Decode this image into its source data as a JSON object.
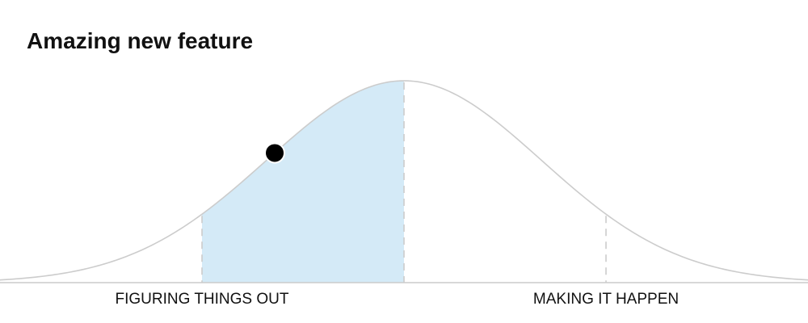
{
  "title": "Amazing new feature",
  "phases": {
    "left": "FIGURING THINGS OUT",
    "right": "MAKING IT HAPPEN"
  },
  "progress": {
    "position_percent": 34,
    "highlight_range_percent": [
      25,
      50
    ]
  },
  "colors": {
    "curve": "#cccccc",
    "divider": "#cccccc",
    "highlight": "#d4eaf7",
    "marker": "#000000",
    "text": "#111111"
  }
}
